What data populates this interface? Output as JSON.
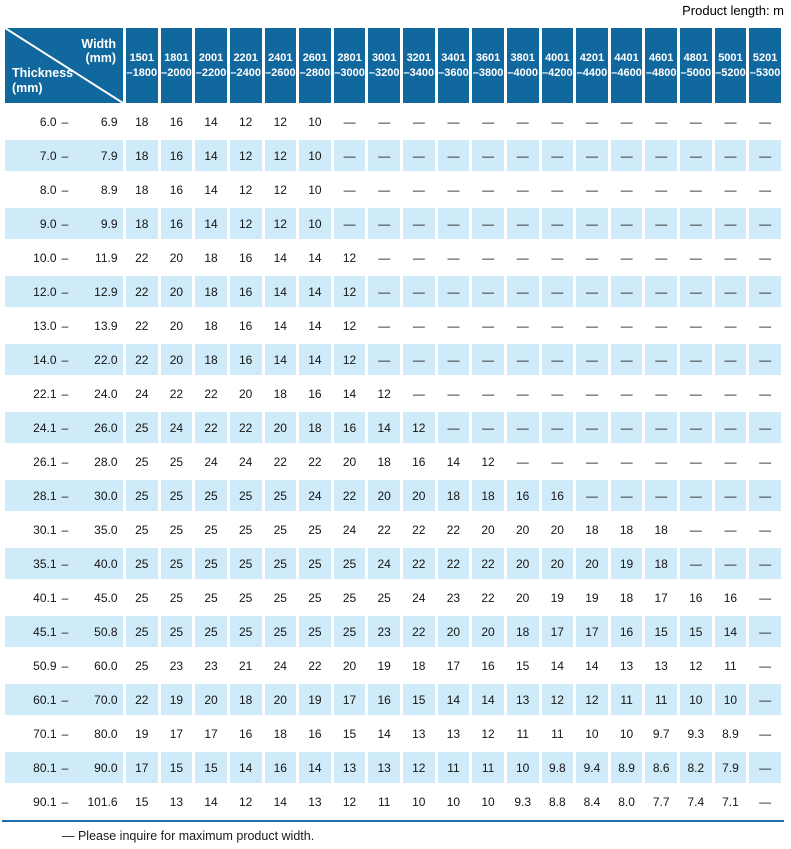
{
  "page": {
    "unit_note": "Product length: m",
    "footer_note": "— Please inquire for maximum product width."
  },
  "colors": {
    "header_blue": "#11689f",
    "row_light_blue": "#cfeaf8",
    "rule_blue": "#1b6fa6"
  },
  "table": {
    "corner": {
      "width_label": "Width",
      "width_unit": "(mm)",
      "thickness_label": "Thickness",
      "thickness_unit": "(mm)"
    },
    "range_separator": "–",
    "columns": [
      {
        "from": "1501",
        "to": "–1800"
      },
      {
        "from": "1801",
        "to": "–2000"
      },
      {
        "from": "2001",
        "to": "–2200"
      },
      {
        "from": "2201",
        "to": "–2400"
      },
      {
        "from": "2401",
        "to": "–2600"
      },
      {
        "from": "2601",
        "to": "–2800"
      },
      {
        "from": "2801",
        "to": "–3000"
      },
      {
        "from": "3001",
        "to": "–3200"
      },
      {
        "from": "3201",
        "to": "–3400"
      },
      {
        "from": "3401",
        "to": "–3600"
      },
      {
        "from": "3601",
        "to": "–3800"
      },
      {
        "from": "3801",
        "to": "–4000"
      },
      {
        "from": "4001",
        "to": "–4200"
      },
      {
        "from": "4201",
        "to": "–4400"
      },
      {
        "from": "4401",
        "to": "–4600"
      },
      {
        "from": "4601",
        "to": "–4800"
      },
      {
        "from": "4801",
        "to": "–5000"
      },
      {
        "from": "5001",
        "to": "–5200"
      },
      {
        "from": "5201",
        "to": "–5300"
      }
    ],
    "rows": [
      {
        "from": "6.0",
        "to": "6.9",
        "values": [
          "18",
          "16",
          "14",
          "12",
          "12",
          "10",
          "—",
          "—",
          "—",
          "—",
          "—",
          "—",
          "—",
          "—",
          "—",
          "—",
          "—",
          "—",
          "—"
        ]
      },
      {
        "from": "7.0",
        "to": "7.9",
        "values": [
          "18",
          "16",
          "14",
          "12",
          "12",
          "10",
          "—",
          "—",
          "—",
          "—",
          "—",
          "—",
          "—",
          "—",
          "—",
          "—",
          "—",
          "—",
          "—"
        ]
      },
      {
        "from": "8.0",
        "to": "8.9",
        "values": [
          "18",
          "16",
          "14",
          "12",
          "12",
          "10",
          "—",
          "—",
          "—",
          "—",
          "—",
          "—",
          "—",
          "—",
          "—",
          "—",
          "—",
          "—",
          "—"
        ]
      },
      {
        "from": "9.0",
        "to": "9.9",
        "values": [
          "18",
          "16",
          "14",
          "12",
          "12",
          "10",
          "—",
          "—",
          "—",
          "—",
          "—",
          "—",
          "—",
          "—",
          "—",
          "—",
          "—",
          "—",
          "—"
        ]
      },
      {
        "from": "10.0",
        "to": "11.9",
        "values": [
          "22",
          "20",
          "18",
          "16",
          "14",
          "14",
          "12",
          "—",
          "—",
          "—",
          "—",
          "—",
          "—",
          "—",
          "—",
          "—",
          "—",
          "—",
          "—"
        ]
      },
      {
        "from": "12.0",
        "to": "12.9",
        "values": [
          "22",
          "20",
          "18",
          "16",
          "14",
          "14",
          "12",
          "—",
          "—",
          "—",
          "—",
          "—",
          "—",
          "—",
          "—",
          "—",
          "—",
          "—",
          "—"
        ]
      },
      {
        "from": "13.0",
        "to": "13.9",
        "values": [
          "22",
          "20",
          "18",
          "16",
          "14",
          "14",
          "12",
          "—",
          "—",
          "—",
          "—",
          "—",
          "—",
          "—",
          "—",
          "—",
          "—",
          "—",
          "—"
        ]
      },
      {
        "from": "14.0",
        "to": "22.0",
        "values": [
          "22",
          "20",
          "18",
          "16",
          "14",
          "14",
          "12",
          "—",
          "—",
          "—",
          "—",
          "—",
          "—",
          "—",
          "—",
          "—",
          "—",
          "—",
          "—"
        ]
      },
      {
        "from": "22.1",
        "to": "24.0",
        "values": [
          "24",
          "22",
          "22",
          "20",
          "18",
          "16",
          "14",
          "12",
          "—",
          "—",
          "—",
          "—",
          "—",
          "—",
          "—",
          "—",
          "—",
          "—",
          "—"
        ]
      },
      {
        "from": "24.1",
        "to": "26.0",
        "values": [
          "25",
          "24",
          "22",
          "22",
          "20",
          "18",
          "16",
          "14",
          "12",
          "—",
          "—",
          "—",
          "—",
          "—",
          "—",
          "—",
          "—",
          "—",
          "—"
        ]
      },
      {
        "from": "26.1",
        "to": "28.0",
        "values": [
          "25",
          "25",
          "24",
          "24",
          "22",
          "22",
          "20",
          "18",
          "16",
          "14",
          "12",
          "—",
          "—",
          "—",
          "—",
          "—",
          "—",
          "—",
          "—"
        ]
      },
      {
        "from": "28.1",
        "to": "30.0",
        "values": [
          "25",
          "25",
          "25",
          "25",
          "25",
          "24",
          "22",
          "20",
          "20",
          "18",
          "18",
          "16",
          "16",
          "—",
          "—",
          "—",
          "—",
          "—",
          "—"
        ]
      },
      {
        "from": "30.1",
        "to": "35.0",
        "values": [
          "25",
          "25",
          "25",
          "25",
          "25",
          "25",
          "24",
          "22",
          "22",
          "22",
          "20",
          "20",
          "20",
          "18",
          "18",
          "18",
          "—",
          "—",
          "—"
        ]
      },
      {
        "from": "35.1",
        "to": "40.0",
        "values": [
          "25",
          "25",
          "25",
          "25",
          "25",
          "25",
          "25",
          "24",
          "22",
          "22",
          "22",
          "20",
          "20",
          "20",
          "19",
          "18",
          "—",
          "—",
          "—"
        ]
      },
      {
        "from": "40.1",
        "to": "45.0",
        "values": [
          "25",
          "25",
          "25",
          "25",
          "25",
          "25",
          "25",
          "25",
          "24",
          "23",
          "22",
          "20",
          "19",
          "19",
          "18",
          "17",
          "16",
          "16",
          "—"
        ]
      },
      {
        "from": "45.1",
        "to": "50.8",
        "values": [
          "25",
          "25",
          "25",
          "25",
          "25",
          "25",
          "25",
          "23",
          "22",
          "20",
          "20",
          "18",
          "17",
          "17",
          "16",
          "15",
          "15",
          "14",
          "—"
        ]
      },
      {
        "from": "50.9",
        "to": "60.0",
        "values": [
          "25",
          "23",
          "23",
          "21",
          "24",
          "22",
          "20",
          "19",
          "18",
          "17",
          "16",
          "15",
          "14",
          "14",
          "13",
          "13",
          "12",
          "11",
          "—"
        ]
      },
      {
        "from": "60.1",
        "to": "70.0",
        "values": [
          "22",
          "19",
          "20",
          "18",
          "20",
          "19",
          "17",
          "16",
          "15",
          "14",
          "14",
          "13",
          "12",
          "12",
          "11",
          "11",
          "10",
          "10",
          "—"
        ]
      },
      {
        "from": "70.1",
        "to": "80.0",
        "values": [
          "19",
          "17",
          "17",
          "16",
          "18",
          "16",
          "15",
          "14",
          "13",
          "13",
          "12",
          "11",
          "11",
          "10",
          "10",
          "9.7",
          "9.3",
          "8.9",
          "—"
        ]
      },
      {
        "from": "80.1",
        "to": "90.0",
        "values": [
          "17",
          "15",
          "15",
          "14",
          "16",
          "14",
          "13",
          "13",
          "12",
          "11",
          "11",
          "10",
          "9.8",
          "9.4",
          "8.9",
          "8.6",
          "8.2",
          "7.9",
          "—"
        ]
      },
      {
        "from": "90.1",
        "to": "101.6",
        "values": [
          "15",
          "13",
          "14",
          "12",
          "14",
          "13",
          "12",
          "11",
          "10",
          "10",
          "10",
          "9.3",
          "8.8",
          "8.4",
          "8.0",
          "7.7",
          "7.4",
          "7.1",
          "—"
        ]
      }
    ]
  }
}
